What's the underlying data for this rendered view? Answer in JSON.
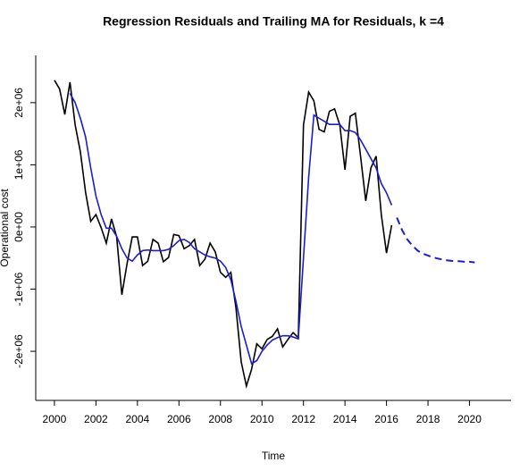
{
  "chart_data": {
    "type": "line",
    "title": "Regression Residuals and Trailing MA for Residuals, k =4",
    "x_label": "Time",
    "y_label": "Operational cost",
    "xlim": [
      1999.1,
      2022.0
    ],
    "ylim": [
      -2790000,
      2760000
    ],
    "xticks": [
      2000,
      2002,
      2004,
      2006,
      2008,
      2010,
      2012,
      2014,
      2016,
      2018,
      2020
    ],
    "yticks": [
      {
        "value": -2000000,
        "label": "-2e+06"
      },
      {
        "value": -1000000,
        "label": "-1e+06"
      },
      {
        "value": 0,
        "label": "0e+00"
      },
      {
        "value": 1000000,
        "label": "1e+06"
      },
      {
        "value": 2000000,
        "label": "2e+06"
      }
    ],
    "grid": false,
    "series": [
      {
        "color": "#000000",
        "linestyle": "solid",
        "x": [
          2000,
          2000.25,
          2000.5,
          2000.75,
          2001,
          2001.25,
          2001.5,
          2001.75,
          2002,
          2002.25,
          2002.5,
          2002.75,
          2003,
          2003.25,
          2003.5,
          2003.75,
          2004,
          2004.25,
          2004.5,
          2004.75,
          2005,
          2005.25,
          2005.5,
          2005.75,
          2006,
          2006.25,
          2006.5,
          2006.75,
          2007,
          2007.25,
          2007.5,
          2007.75,
          2008,
          2008.25,
          2008.5,
          2008.75,
          2009,
          2009.25,
          2009.5,
          2009.75,
          2010,
          2010.25,
          2010.5,
          2010.75,
          2011,
          2011.25,
          2011.5,
          2011.75,
          2012,
          2012.25,
          2012.5,
          2012.75,
          2013,
          2013.25,
          2013.5,
          2013.75,
          2014,
          2014.25,
          2014.5,
          2014.75,
          2015,
          2015.25,
          2015.5,
          2015.75,
          2016,
          2016.25
        ],
        "values": [
          2360000,
          2220000,
          1810000,
          2330000,
          1640000,
          1210000,
          560000,
          90000,
          200000,
          -10000,
          -260000,
          130000,
          -160000,
          -1090000,
          -590000,
          -160000,
          -160000,
          -620000,
          -550000,
          -200000,
          -260000,
          -560000,
          -490000,
          -120000,
          -140000,
          -350000,
          -300000,
          -200000,
          -620000,
          -520000,
          -260000,
          -400000,
          -730000,
          -810000,
          -730000,
          -1310000,
          -2170000,
          -2560000,
          -2290000,
          -1880000,
          -1960000,
          -1810000,
          -1760000,
          -1640000,
          -1930000,
          -1810000,
          -1700000,
          -1780000,
          1640000,
          2170000,
          2030000,
          1570000,
          1530000,
          1860000,
          1900000,
          1640000,
          920000,
          1780000,
          1830000,
          1140000,
          420000,
          950000,
          1140000,
          200000,
          -420000,
          30000
        ]
      },
      {
        "color": "#1c1cd0",
        "linestyle": "solid",
        "x": [
          2000.75,
          2001,
          2001.25,
          2001.5,
          2001.75,
          2002,
          2002.25,
          2002.5,
          2002.75,
          2003,
          2003.25,
          2003.5,
          2003.75,
          2004,
          2004.25,
          2004.5,
          2004.75,
          2005,
          2005.25,
          2005.5,
          2005.75,
          2006,
          2006.25,
          2006.5,
          2006.75,
          2007,
          2007.25,
          2007.5,
          2007.75,
          2008,
          2008.25,
          2008.5,
          2008.75,
          2009,
          2009.25,
          2009.5,
          2009.75,
          2010,
          2010.25,
          2010.5,
          2010.75,
          2011,
          2011.25,
          2011.5,
          2011.75,
          2012,
          2012.25,
          2012.5,
          2012.75,
          2013,
          2013.25,
          2013.5,
          2013.75,
          2014,
          2014.25,
          2014.5,
          2014.75,
          2015,
          2015.25,
          2015.5,
          2015.75,
          2016,
          2016.25
        ],
        "values": [
          2150000,
          2000000,
          1750000,
          1450000,
          950000,
          500000,
          200000,
          -20000,
          -20000,
          -150000,
          -350000,
          -500000,
          -550000,
          -450000,
          -380000,
          -370000,
          -380000,
          -380000,
          -380000,
          -360000,
          -300000,
          -220000,
          -200000,
          -250000,
          -350000,
          -400000,
          -450000,
          -480000,
          -500000,
          -550000,
          -650000,
          -850000,
          -1200000,
          -1600000,
          -1900000,
          -2200000,
          -2150000,
          -2000000,
          -1900000,
          -1820000,
          -1780000,
          -1750000,
          -1750000,
          -1770000,
          -1800000,
          -500000,
          800000,
          1800000,
          1750000,
          1700000,
          1650000,
          1650000,
          1650000,
          1550000,
          1550000,
          1520000,
          1400000,
          1250000,
          1100000,
          950000,
          700000,
          550000,
          350000
        ]
      },
      {
        "color": "#1c1cd0",
        "linestyle": "dashed",
        "x": [
          2016.5,
          2016.75,
          2017,
          2017.25,
          2017.5,
          2017.75,
          2018,
          2018.25,
          2018.5,
          2018.75,
          2019,
          2019.25,
          2019.5,
          2019.75,
          2020,
          2020.25
        ],
        "values": [
          150000,
          -50000,
          -200000,
          -300000,
          -380000,
          -430000,
          -460000,
          -490000,
          -510000,
          -530000,
          -540000,
          -550000,
          -550000,
          -560000,
          -560000,
          -570000
        ]
      }
    ]
  }
}
